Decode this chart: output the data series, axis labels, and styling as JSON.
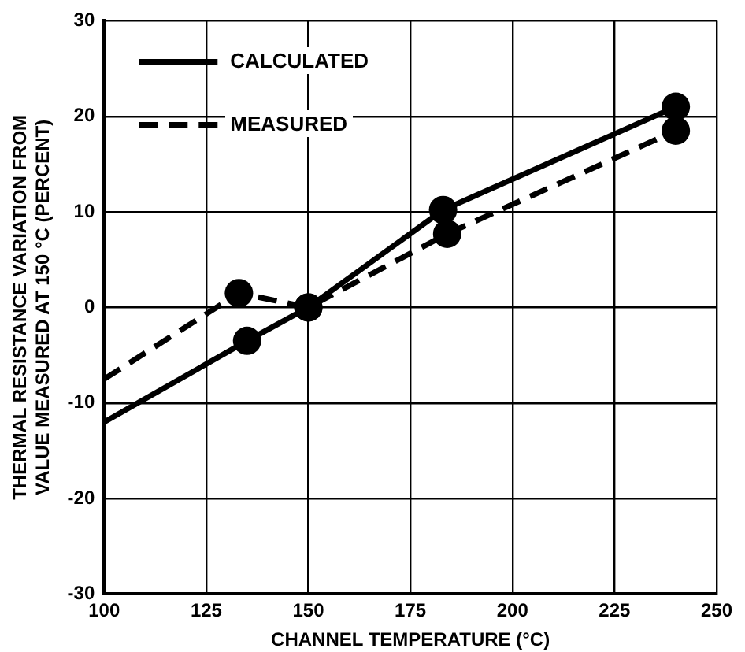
{
  "chart_data": {
    "type": "line",
    "xlabel": "CHANNEL TEMPERATURE (°C)",
    "ylabel": "THERMAL RESISTANCE VARIATION FROM\nVALUE MEASURED AT 150 °C (PERCENT)",
    "xlim": [
      100,
      250
    ],
    "xticks": [
      100,
      125,
      150,
      175,
      200,
      225,
      250
    ],
    "ylim": [
      -30,
      30
    ],
    "yticks": [
      -30,
      -20,
      -10,
      0,
      10,
      20,
      30
    ],
    "grid": true,
    "legend": "top left",
    "marker": "circle",
    "series": [
      {
        "name": "CALCULATED",
        "color": "#000000",
        "line_style": "solid",
        "x": [
          100,
          135,
          150,
          183,
          240
        ],
        "values": [
          -12,
          -3.5,
          0,
          10.2,
          21
        ]
      },
      {
        "name": "MEASURED",
        "color": "#000000",
        "line_style": "dashed",
        "x": [
          100,
          133,
          150,
          184,
          240
        ],
        "values": [
          -7.5,
          1.5,
          0,
          7.7,
          18.5
        ]
      }
    ]
  }
}
